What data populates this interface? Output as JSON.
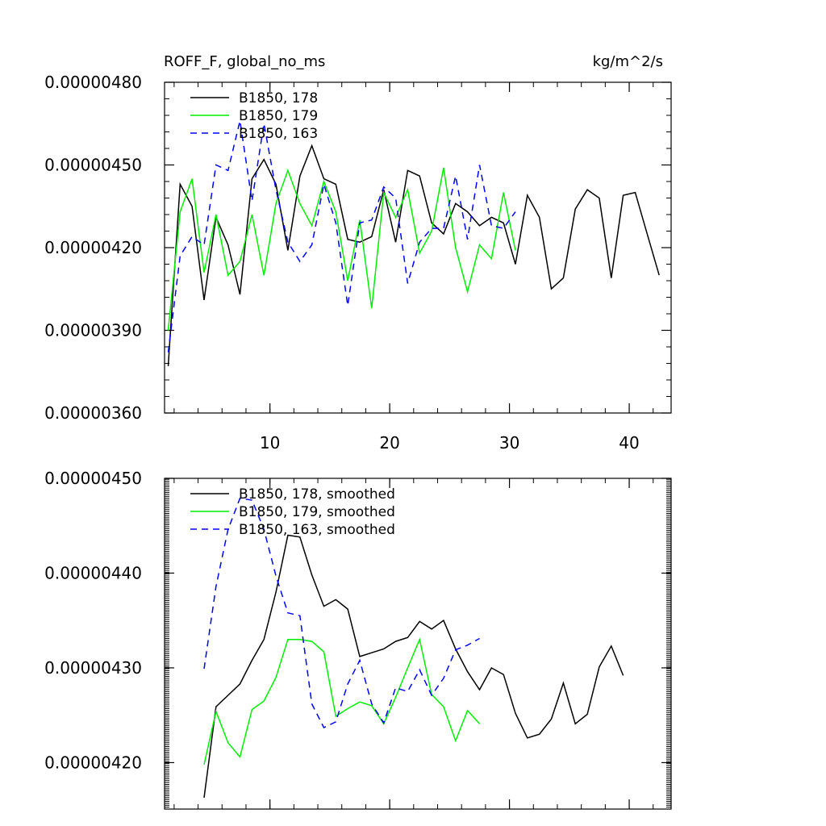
{
  "header": {
    "title": "ROFF_F, global_no_ms",
    "units": "kg/m^2/s"
  },
  "chart_data": [
    {
      "type": "line",
      "xlim": [
        1.2,
        43.5
      ],
      "ylim": [
        3.6e-06,
        4.8e-06
      ],
      "yticks": [
        {
          "value": 3.6e-06,
          "label": "0.00000360"
        },
        {
          "value": 3.9e-06,
          "label": "0.00000390"
        },
        {
          "value": 4.2e-06,
          "label": "0.00000420"
        },
        {
          "value": 4.5e-06,
          "label": "0.00000450"
        },
        {
          "value": 4.8e-06,
          "label": "0.00000480"
        }
      ],
      "xticks": [
        {
          "value": 10,
          "label": "10"
        },
        {
          "value": 20,
          "label": "20"
        },
        {
          "value": 30,
          "label": "30"
        },
        {
          "value": 40,
          "label": "40"
        }
      ],
      "x_minor_step": 2,
      "y_minor_step": 6e-08,
      "legend_position": "top-left",
      "series": [
        {
          "name": "B1850, 178",
          "color": "#000000",
          "dash": "",
          "x": [
            1.5,
            2.5,
            3.5,
            4.5,
            5.5,
            6.5,
            7.5,
            8.5,
            9.5,
            10.5,
            11.5,
            12.5,
            13.5,
            14.5,
            15.5,
            16.5,
            17.5,
            18.5,
            19.5,
            20.5,
            21.5,
            22.5,
            23.5,
            24.5,
            25.5,
            26.5,
            27.5,
            28.5,
            29.5,
            30.5,
            31.5,
            32.5,
            33.5,
            34.5,
            35.5,
            36.5,
            37.5,
            38.5,
            39.5,
            40.5,
            41.5,
            42.5
          ],
          "values": [
            3.77e-06,
            4.43e-06,
            4.35e-06,
            4.01e-06,
            4.31e-06,
            4.21e-06,
            4.03e-06,
            4.45e-06,
            4.52e-06,
            4.43e-06,
            4.19e-06,
            4.46e-06,
            4.57e-06,
            4.45e-06,
            4.43e-06,
            4.23e-06,
            4.22e-06,
            4.24e-06,
            4.41e-06,
            4.22e-06,
            4.48e-06,
            4.46e-06,
            4.29e-06,
            4.25e-06,
            4.36e-06,
            4.33e-06,
            4.28e-06,
            4.31e-06,
            4.29e-06,
            4.14e-06,
            4.39e-06,
            4.31e-06,
            4.05e-06,
            4.09e-06,
            4.34e-06,
            4.41e-06,
            4.38e-06,
            4.09e-06,
            4.39e-06,
            4.4e-06,
            4.25e-06,
            4.1e-06
          ]
        },
        {
          "name": "B1850, 179",
          "color": "#00ee00",
          "dash": "",
          "x": [
            1.5,
            2.5,
            3.5,
            4.5,
            5.5,
            6.5,
            7.5,
            8.5,
            9.5,
            10.5,
            11.5,
            12.5,
            13.5,
            14.5,
            15.5,
            16.5,
            17.5,
            18.5,
            19.5,
            20.5,
            21.5,
            22.5,
            23.5,
            24.5,
            25.5,
            26.5,
            27.5,
            28.5,
            29.5,
            30.5
          ],
          "values": [
            3.9e-06,
            4.33e-06,
            4.45e-06,
            4.11e-06,
            4.32e-06,
            4.1e-06,
            4.15e-06,
            4.32e-06,
            4.1e-06,
            4.36e-06,
            4.48e-06,
            4.36e-06,
            4.28e-06,
            4.44e-06,
            4.33e-06,
            4.08e-06,
            4.3e-06,
            3.98e-06,
            4.4e-06,
            4.31e-06,
            4.41e-06,
            4.18e-06,
            4.26e-06,
            4.49e-06,
            4.2e-06,
            4.04e-06,
            4.21e-06,
            4.16e-06,
            4.4e-06,
            4.19e-06
          ]
        },
        {
          "name": "B1850, 163",
          "color": "#0000ff",
          "dash": "8,6",
          "x": [
            1.5,
            2.5,
            3.5,
            4.5,
            5.5,
            6.5,
            7.5,
            8.5,
            9.5,
            10.5,
            11.5,
            12.5,
            13.5,
            14.5,
            15.5,
            16.5,
            17.5,
            18.5,
            19.5,
            20.5,
            21.5,
            22.5,
            23.5,
            24.5,
            25.5,
            26.5,
            27.5,
            28.5,
            29.5,
            30.5
          ],
          "values": [
            3.82e-06,
            4.17e-06,
            4.24e-06,
            4.21e-06,
            4.5e-06,
            4.48e-06,
            4.66e-06,
            4.37e-06,
            4.65e-06,
            4.41e-06,
            4.22e-06,
            4.15e-06,
            4.21e-06,
            4.43e-06,
            4.29e-06,
            3.99e-06,
            4.29e-06,
            4.3e-06,
            4.42e-06,
            4.38e-06,
            4.07e-06,
            4.22e-06,
            4.27e-06,
            4.27e-06,
            4.46e-06,
            4.23e-06,
            4.5e-06,
            4.28e-06,
            4.27e-06,
            4.33e-06
          ]
        }
      ]
    },
    {
      "type": "line",
      "xlim": [
        1.2,
        43.5
      ],
      "ylim": [
        4.151e-06,
        4.5e-06
      ],
      "yticks": [
        {
          "value": 4.2e-06,
          "label": "0.00000420"
        },
        {
          "value": 4.3e-06,
          "label": "0.00000430"
        },
        {
          "value": 4.4e-06,
          "label": "0.00000440"
        },
        {
          "value": 4.5e-06,
          "label": "0.00000450"
        }
      ],
      "xticks": [
        {
          "value": 10,
          "label": ""
        },
        {
          "value": 20,
          "label": ""
        },
        {
          "value": 30,
          "label": ""
        },
        {
          "value": 40,
          "label": ""
        }
      ],
      "x_minor_step": 2,
      "y_minor_step": 2e-09,
      "legend_position": "top-left",
      "series": [
        {
          "name": "B1850, 178, smoothed",
          "color": "#000000",
          "dash": "",
          "x": [
            4.5,
            5.5,
            6.5,
            7.5,
            8.5,
            9.5,
            10.5,
            11.5,
            12.5,
            13.5,
            14.5,
            15.5,
            16.5,
            17.5,
            18.5,
            19.5,
            20.5,
            21.5,
            22.5,
            23.5,
            24.5,
            25.5,
            26.5,
            27.5,
            28.5,
            29.5,
            30.5,
            31.5,
            32.5,
            33.5,
            34.5,
            35.5,
            36.5,
            37.5,
            38.5,
            39.5
          ],
          "values": [
            4.163e-06,
            4.259e-06,
            4.271e-06,
            4.283e-06,
            4.308e-06,
            4.33e-06,
            4.38e-06,
            4.44e-06,
            4.438e-06,
            4.398e-06,
            4.365e-06,
            4.372e-06,
            4.362e-06,
            4.312e-06,
            4.316e-06,
            4.32e-06,
            4.328e-06,
            4.332e-06,
            4.349e-06,
            4.341e-06,
            4.35e-06,
            4.32e-06,
            4.296e-06,
            4.277e-06,
            4.3e-06,
            4.293e-06,
            4.252e-06,
            4.226e-06,
            4.23e-06,
            4.246e-06,
            4.284e-06,
            4.241e-06,
            4.251e-06,
            4.301e-06,
            4.323e-06,
            4.292e-06
          ]
        },
        {
          "name": "B1850, 179, smoothed",
          "color": "#00ee00",
          "dash": "",
          "x": [
            4.5,
            5.5,
            6.5,
            7.5,
            8.5,
            9.5,
            10.5,
            11.5,
            12.5,
            13.5,
            14.5,
            15.5,
            16.5,
            17.5,
            18.5,
            19.5,
            20.5,
            21.5,
            22.5,
            23.5,
            24.5,
            25.5,
            26.5,
            27.5
          ],
          "values": [
            4.198e-06,
            4.254e-06,
            4.221e-06,
            4.206e-06,
            4.256e-06,
            4.265e-06,
            4.29e-06,
            4.33e-06,
            4.33e-06,
            4.328e-06,
            4.317e-06,
            4.249e-06,
            4.257e-06,
            4.264e-06,
            4.26e-06,
            4.241e-06,
            4.269e-06,
            4.3e-06,
            4.33e-06,
            4.272e-06,
            4.259e-06,
            4.223e-06,
            4.255e-06,
            4.241e-06
          ]
        },
        {
          "name": "B1850, 163, smoothed",
          "color": "#0000ff",
          "dash": "8,6",
          "x": [
            4.5,
            5.5,
            6.5,
            7.5,
            8.5,
            9.5,
            10.5,
            11.5,
            12.5,
            13.5,
            14.5,
            15.5,
            16.5,
            17.5,
            18.5,
            19.5,
            20.5,
            21.5,
            22.5,
            23.5,
            24.5,
            25.5,
            26.5,
            27.5
          ],
          "values": [
            4.299e-06,
            4.386e-06,
            4.446e-06,
            4.479e-06,
            4.477e-06,
            4.446e-06,
            4.397e-06,
            4.358e-06,
            4.355e-06,
            4.262e-06,
            4.237e-06,
            4.243e-06,
            4.283e-06,
            4.308e-06,
            4.262e-06,
            4.242e-06,
            4.279e-06,
            4.275e-06,
            4.298e-06,
            4.271e-06,
            4.289e-06,
            4.319e-06,
            4.324e-06,
            4.331e-06
          ]
        }
      ]
    }
  ]
}
